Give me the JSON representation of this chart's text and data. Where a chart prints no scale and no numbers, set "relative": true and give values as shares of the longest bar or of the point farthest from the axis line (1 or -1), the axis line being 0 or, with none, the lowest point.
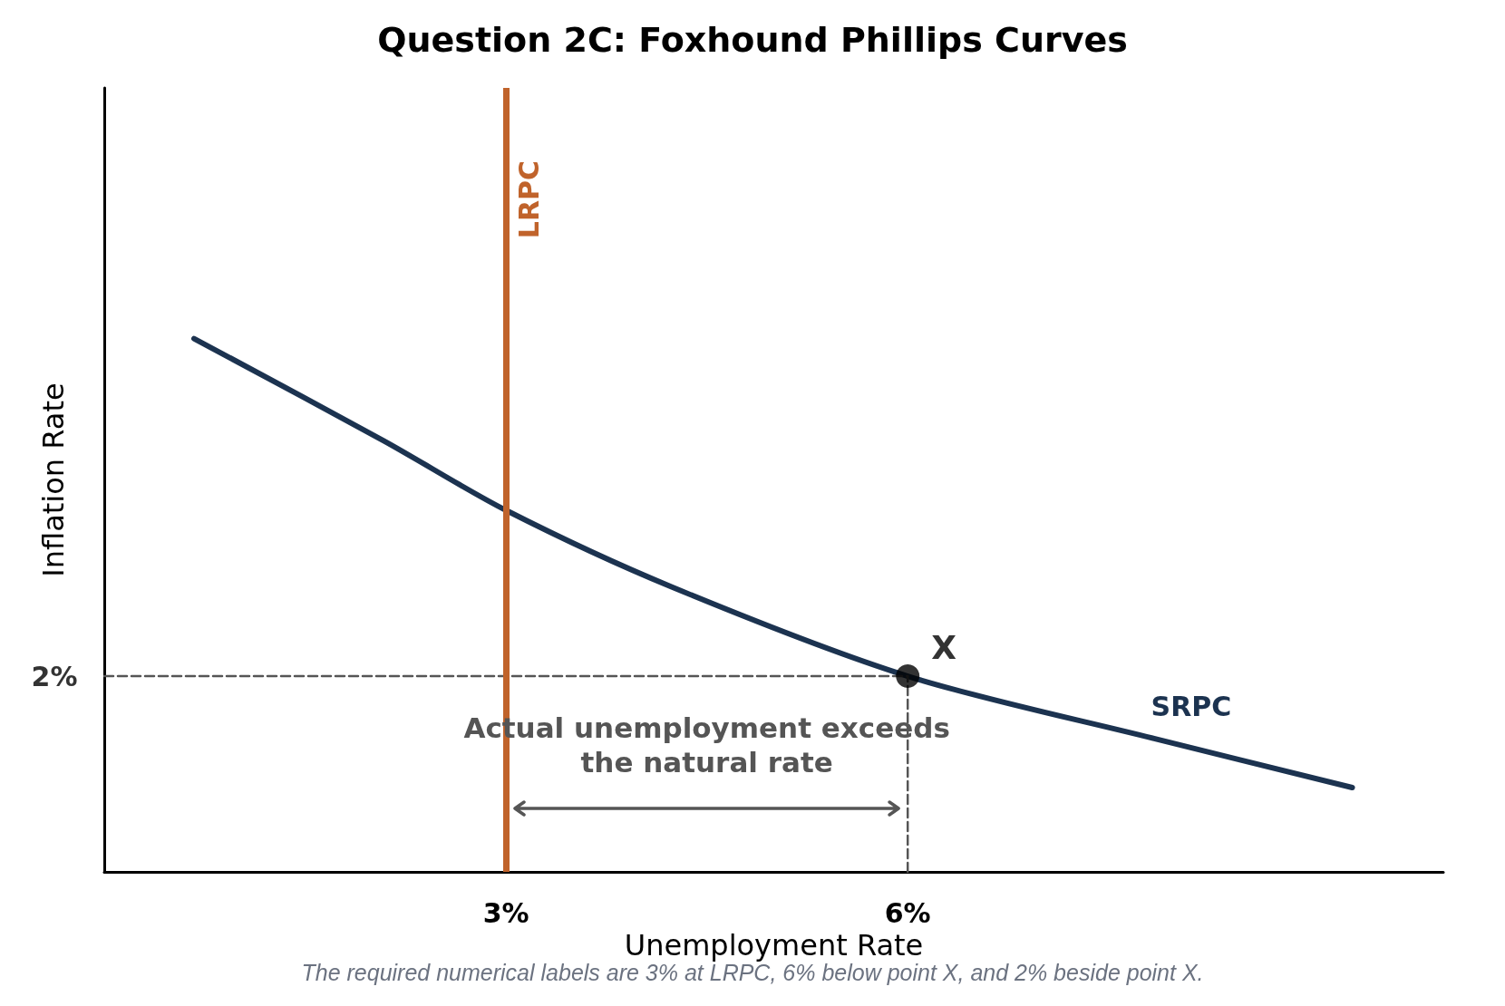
{
  "chart_data": {
    "type": "line",
    "title": "Question 2C: Foxhound Phillips Curves",
    "xlabel": "Unemployment Rate",
    "ylabel": "Inflation Rate",
    "relative": true,
    "tick_labels": "x",
    "xlim": [
      0,
      10
    ],
    "xticks": [
      {
        "value": 3,
        "label": "3%"
      },
      {
        "value": 6,
        "label": "6%"
      }
    ],
    "series": [
      {
        "name": "SRPC",
        "color": "#1c3350",
        "x": [
          0.67,
          2.09,
          3,
          4.24,
          6,
          7.84,
          9.32
        ],
        "values": [
          1,
          0.808,
          0.678,
          0.534,
          0.367,
          0.25,
          0.158
        ],
        "marker": "none",
        "line_style": "solid"
      },
      {
        "color": "#555555",
        "x": [
          0,
          6
        ],
        "values": [
          0.367,
          0.367
        ],
        "marker": "none",
        "line_style": "dashed"
      },
      {
        "color": "#555555",
        "x": [
          6,
          6
        ],
        "values": [
          0,
          0.367
        ],
        "marker": "none",
        "line_style": "dashed"
      },
      {
        "type": "scatter",
        "color": "#000000",
        "x": [
          6
        ],
        "values": [
          0.367
        ],
        "marker": "circle"
      }
    ],
    "ref_lines": [
      {
        "axis": "x",
        "value": 3,
        "label": "LRPC",
        "color": "#c0632b",
        "line_style": "solid"
      }
    ],
    "annotations": [
      {
        "text": "X",
        "x": 6,
        "y": 0.367
      },
      {
        "text": "2%",
        "x": 0,
        "y": 0.367
      },
      "Actual unemployment exceeds\nthe natural rate",
      "The required numerical labels are 3% at LRPC, 6% below point X, and 2% beside point X."
    ]
  }
}
